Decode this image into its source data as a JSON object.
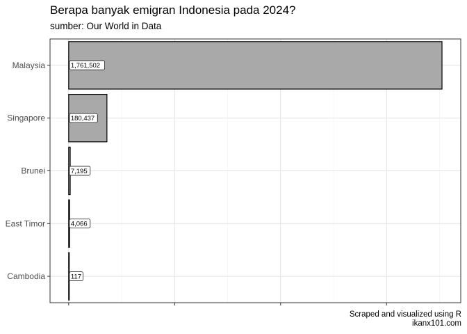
{
  "chart_data": {
    "type": "bar",
    "orientation": "horizontal",
    "title": "Berapa banyak emigran Indonesia pada 2024?",
    "subtitle": "sumber: Our World in Data",
    "caption": [
      "Scraped and visualized using R",
      "ikanx101.com"
    ],
    "categories": [
      "Malaysia",
      "Singapore",
      "Brunei",
      "East Timor",
      "Cambodia"
    ],
    "values": [
      1761502,
      180437,
      7195,
      4066,
      117
    ],
    "value_labels": [
      "1,761,502",
      "180,437",
      "7,195",
      "4,066",
      "117"
    ],
    "xlabel": "",
    "ylabel": "",
    "xlim": [
      -88000,
      1850000
    ],
    "x_tick_labels": "hidden",
    "grid": true,
    "legend": "none",
    "bar_color": "#a9a9a9",
    "bar_outline": "#000000",
    "panel_border": "#333333"
  }
}
